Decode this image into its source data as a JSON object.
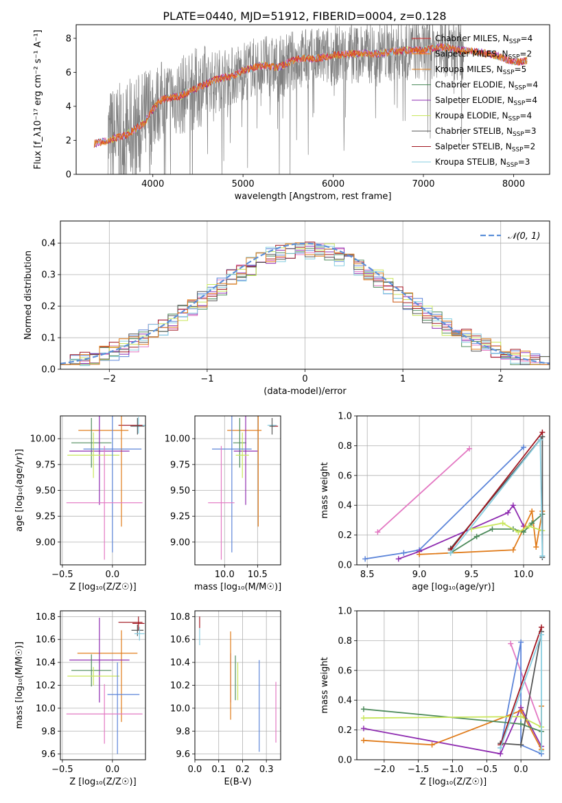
{
  "figure_title": "PLATE=0440, MJD=51912, FIBERID=0004, z=0.128",
  "colors": {
    "chabrier_miles": "#d62728",
    "salpeter_miles": "#ff7f0e",
    "kroupa_miles": "#e07b1a",
    "chabrier_elodie": "#4c8a5a",
    "salpeter_elodie": "#8e2bb0",
    "kroupa_elodie": "#c8e65a",
    "chabrier_stelib": "#555555",
    "salpeter_stelib": "#a0141e",
    "kroupa_stelib": "#86cde0",
    "gray": "#7f7f7f",
    "normal": "#5b8fd9",
    "pink": "#e377c2",
    "blue": "#5b84d9",
    "green": "#4c8a5a",
    "orange": "#e07b1a",
    "purple": "#8e2bb0",
    "lime": "#c8e65a",
    "darkred": "#a0141e",
    "teal": "#86cde0"
  },
  "chart_data": [
    {
      "type": "line",
      "id": "spectrum",
      "xlabel": "wavelength [Angstrom, rest frame]",
      "ylabel": "Flux [f_λ10⁻¹⁷ erg cm⁻² s⁻¹ A⁻¹]",
      "xlim": [
        3150,
        8400
      ],
      "ylim": [
        0,
        8.8
      ],
      "xticks": [
        4000,
        5000,
        6000,
        7000,
        8000
      ],
      "yticks": [
        0,
        2,
        4,
        6,
        8
      ],
      "legend_position": "right",
      "legend": [
        {
          "label": "Chabrier MILES, N",
          "sub": "SSP",
          "n": "=4"
        },
        {
          "label": "Salpeter MILES, N",
          "sub": "SSP",
          "n": "=2"
        },
        {
          "label": "Kroupa MILES, N",
          "sub": "SSP",
          "n": "=5"
        },
        {
          "label": "Chabrier ELODIE, N",
          "sub": "SSP",
          "n": "=4"
        },
        {
          "label": "Salpeter ELODIE, N",
          "sub": "SSP",
          "n": "=4"
        },
        {
          "label": "Kroupa ELODIE, N",
          "sub": "SSP",
          "n": "=4"
        },
        {
          "label": "Chabrier STELIB, N",
          "sub": "SSP",
          "n": "=3"
        },
        {
          "label": "Salpeter STELIB, N",
          "sub": "SSP",
          "n": "=2"
        },
        {
          "label": "Kroupa STELIB, N",
          "sub": "SSP",
          "n": "=3"
        }
      ],
      "model_curve": {
        "x": [
          3350,
          3500,
          3700,
          3900,
          4000,
          4100,
          4300,
          4500,
          4700,
          4900,
          5000,
          5200,
          5400,
          5600,
          5800,
          6000,
          6200,
          6500,
          6800,
          7000,
          7200,
          7400,
          7600,
          7800,
          8000,
          8150
        ],
        "y": [
          1.8,
          2.0,
          2.3,
          3.0,
          3.8,
          4.4,
          4.6,
          5.1,
          5.6,
          5.8,
          6.1,
          6.4,
          6.3,
          6.8,
          6.8,
          7.0,
          7.1,
          7.1,
          7.3,
          7.3,
          7.5,
          7.3,
          7.2,
          7.0,
          6.6,
          6.7
        ]
      }
    },
    {
      "type": "line",
      "id": "residuals",
      "xlabel": "(data-model)/error",
      "ylabel": "Normed distribution",
      "xlim": [
        -2.5,
        2.5
      ],
      "ylim": [
        0,
        0.47
      ],
      "xticks": [
        -2,
        -1,
        0,
        1,
        2
      ],
      "yticks": [
        0.0,
        0.1,
        0.2,
        0.3,
        0.4
      ],
      "legend": "𝒩(0, 1)",
      "normal": {
        "mu": 0,
        "sigma": 1
      }
    },
    {
      "type": "scatter",
      "id": "age_Z",
      "xlabel": "Z [log₁₀(Z/Z☉)]",
      "ylabel": "age  [log₁₀(age/yr)]",
      "xlim": [
        -0.52,
        0.33
      ],
      "ylim": [
        8.78,
        10.22
      ],
      "xticks": [
        -0.5,
        0.0
      ],
      "yticks": [
        9.0,
        9.25,
        9.5,
        9.75,
        10.0
      ],
      "points": [
        {
          "x": 0.26,
          "y": 10.13,
          "xerr": 0.07,
          "yerr": 0.08,
          "c": "teal"
        },
        {
          "x": 0.18,
          "y": 10.13,
          "xerr": 0.12,
          "yerr": 0.0,
          "c": "darkred"
        },
        {
          "x": 0.25,
          "y": 10.12,
          "xerr": 0.07,
          "yerr": 0.08,
          "c": "chabrier_stelib"
        },
        {
          "x": -0.09,
          "y": 10.08,
          "xerr": 0.25,
          "yerr": 0.0,
          "c": "orange"
        },
        {
          "x": 0.09,
          "y": 9.85,
          "xerr": 0.0,
          "yerr": 0.7,
          "c": "orange"
        },
        {
          "x": -0.21,
          "y": 9.96,
          "xerr": 0.2,
          "yerr": 0.24,
          "c": "green"
        },
        {
          "x": -0.13,
          "y": 9.88,
          "xerr": 0.3,
          "yerr": 0.52,
          "c": "purple"
        },
        {
          "x": -0.19,
          "y": 9.84,
          "xerr": 0.26,
          "yerr": 0.22,
          "c": "lime"
        },
        {
          "x": -0.0,
          "y": 9.9,
          "xerr": 0.29,
          "yerr": 1.0,
          "c": "blue"
        },
        {
          "x": -0.08,
          "y": 9.38,
          "xerr": 0.38,
          "yerr": 0.55,
          "c": "pink"
        }
      ]
    },
    {
      "type": "scatter",
      "id": "age_mass",
      "xlabel": "mass [log₁₀(M/M☉)]",
      "ylabel": "",
      "xlim": [
        9.55,
        10.85
      ],
      "ylim": [
        8.78,
        10.22
      ],
      "xticks": [
        10.0,
        10.5
      ],
      "yticks": [
        9.0,
        9.25,
        9.5,
        9.75,
        10.0
      ],
      "points": [
        {
          "x": 10.72,
          "y": 10.13,
          "xerr": 0.07,
          "yerr": 0.0,
          "c": "teal"
        },
        {
          "x": 10.76,
          "y": 10.12,
          "xerr": 0.05,
          "yerr": 0.0,
          "c": "darkred"
        },
        {
          "x": 10.72,
          "y": 10.12,
          "xerr": 0.04,
          "yerr": 0.08,
          "c": "chabrier_stelib"
        },
        {
          "x": 10.3,
          "y": 10.08,
          "xerr": 0.26,
          "yerr": 0.0,
          "c": "orange"
        },
        {
          "x": 10.51,
          "y": 9.85,
          "xerr": 0.0,
          "yerr": 0.7,
          "c": "orange"
        },
        {
          "x": 10.23,
          "y": 9.96,
          "xerr": 0.1,
          "yerr": 0.24,
          "c": "green"
        },
        {
          "x": 10.32,
          "y": 9.88,
          "xerr": 0.18,
          "yerr": 0.52,
          "c": "purple"
        },
        {
          "x": 10.27,
          "y": 9.84,
          "xerr": 0.1,
          "yerr": 0.22,
          "c": "lime"
        },
        {
          "x": 10.11,
          "y": 9.9,
          "xerr": 0.3,
          "yerr": 1.0,
          "c": "blue"
        },
        {
          "x": 9.95,
          "y": 9.38,
          "xerr": 0.2,
          "yerr": 0.55,
          "c": "pink"
        }
      ]
    },
    {
      "type": "line",
      "id": "mw_age",
      "xlabel": "age  [log₁₀(age/yr)]",
      "ylabel": "mass weight",
      "xlim": [
        8.4,
        10.25
      ],
      "ylim": [
        0,
        1.0
      ],
      "xticks": [
        8.5,
        9.0,
        9.5,
        10.0
      ],
      "yticks": [
        0.0,
        0.2,
        0.4,
        0.6,
        0.8,
        1.0
      ],
      "series": [
        {
          "c": "pink",
          "x": [
            8.6,
            9.48
          ],
          "y": [
            0.22,
            0.78
          ]
        },
        {
          "c": "blue",
          "x": [
            8.48,
            8.85,
            9.0,
            10.0
          ],
          "y": [
            0.04,
            0.08,
            0.1,
            0.79
          ]
        },
        {
          "c": "purple",
          "x": [
            8.8,
            9.0,
            9.85,
            9.9,
            10.0
          ],
          "y": [
            0.04,
            0.09,
            0.35,
            0.4,
            0.26
          ]
        },
        {
          "c": "orange",
          "x": [
            9.0,
            9.9,
            10.08,
            10.12,
            10.18
          ],
          "y": [
            0.07,
            0.1,
            0.36,
            0.12,
            0.36
          ]
        },
        {
          "c": "green",
          "x": [
            9.3,
            9.55,
            9.7,
            9.9,
            10.0,
            10.08,
            10.18
          ],
          "y": [
            0.08,
            0.19,
            0.24,
            0.24,
            0.22,
            0.28,
            0.34
          ]
        },
        {
          "c": "lime",
          "x": [
            9.5,
            9.8,
            9.95,
            10.05,
            10.18
          ],
          "y": [
            0.24,
            0.28,
            0.22,
            0.26,
            0.23
          ]
        },
        {
          "c": "chabrier_stelib",
          "x": [
            9.3,
            10.18,
            10.18
          ],
          "y": [
            0.11,
            0.86,
            0.05
          ]
        },
        {
          "c": "darkred",
          "x": [
            9.3,
            10.18
          ],
          "y": [
            0.1,
            0.89
          ]
        },
        {
          "c": "teal",
          "x": [
            9.3,
            10.16,
            10.18
          ],
          "y": [
            0.08,
            0.84,
            0.06
          ]
        }
      ]
    },
    {
      "type": "scatter",
      "id": "mass_Z",
      "xlabel": "Z [log₁₀(Z/Z☉)]",
      "ylabel": "mass [log₁₀(M/M☉)]",
      "xlim": [
        -0.52,
        0.33
      ],
      "ylim": [
        9.55,
        10.85
      ],
      "xticks": [
        -0.5,
        0.0
      ],
      "yticks": [
        9.6,
        9.8,
        10.0,
        10.2,
        10.4,
        10.6,
        10.8
      ],
      "points": [
        {
          "x": 0.18,
          "y": 10.75,
          "xerr": 0.12,
          "yerr": 0.0,
          "c": "darkred"
        },
        {
          "x": 0.26,
          "y": 10.74,
          "xerr": 0.06,
          "yerr": 0.06,
          "c": "darkred"
        },
        {
          "x": 0.25,
          "y": 10.68,
          "xerr": 0.06,
          "yerr": 0.05,
          "c": "chabrier_stelib"
        },
        {
          "x": 0.27,
          "y": 10.65,
          "xerr": 0.05,
          "yerr": 0.06,
          "c": "teal"
        },
        {
          "x": -0.05,
          "y": 10.48,
          "xerr": 0.3,
          "yerr": 0.0,
          "c": "orange"
        },
        {
          "x": 0.09,
          "y": 10.28,
          "xerr": 0.0,
          "yerr": 0.4,
          "c": "orange"
        },
        {
          "x": -0.13,
          "y": 10.42,
          "xerr": 0.3,
          "yerr": 0.37,
          "c": "purple"
        },
        {
          "x": -0.21,
          "y": 10.33,
          "xerr": 0.2,
          "yerr": 0.14,
          "c": "green"
        },
        {
          "x": -0.19,
          "y": 10.28,
          "xerr": 0.26,
          "yerr": 0.08,
          "c": "lime"
        },
        {
          "x": 0.11,
          "y": 10.12,
          "xerr": 0.16,
          "yerr": 0.0,
          "c": "blue"
        },
        {
          "x": 0.05,
          "y": 10.0,
          "xerr": 0.0,
          "yerr": 0.4,
          "c": "blue"
        },
        {
          "x": -0.08,
          "y": 9.95,
          "xerr": 0.38,
          "yerr": 0.26,
          "c": "pink"
        }
      ]
    },
    {
      "type": "scatter",
      "id": "mass_ebv",
      "xlabel": "E(B-V)",
      "ylabel": "",
      "xlim": [
        0.0,
        0.36
      ],
      "ylim": [
        9.55,
        10.85
      ],
      "xticks": [
        0.0,
        0.1,
        0.2,
        0.3
      ],
      "yticks": [
        9.6,
        9.8,
        10.0,
        10.2,
        10.4,
        10.6,
        10.8
      ],
      "vbars": [
        {
          "x": 0.02,
          "y0": 10.7,
          "y1": 10.8,
          "c": "darkred"
        },
        {
          "x": 0.02,
          "y0": 10.55,
          "y1": 10.7,
          "c": "teal"
        },
        {
          "x": 0.15,
          "y0": 10.05,
          "y1": 10.48,
          "c": "purple"
        },
        {
          "x": 0.15,
          "y0": 9.9,
          "y1": 10.67,
          "c": "orange"
        },
        {
          "x": 0.17,
          "y0": 10.07,
          "y1": 10.46,
          "c": "green"
        },
        {
          "x": 0.18,
          "y0": 10.07,
          "y1": 10.4,
          "c": "lime"
        },
        {
          "x": 0.27,
          "y0": 9.62,
          "y1": 10.42,
          "c": "blue"
        },
        {
          "x": 0.34,
          "y0": 9.7,
          "y1": 10.23,
          "c": "pink"
        }
      ]
    },
    {
      "type": "line",
      "id": "mw_Z",
      "xlabel": "Z [log₁₀(Z/Z☉)]",
      "ylabel": "mass weight",
      "xlim": [
        -2.4,
        0.42
      ],
      "ylim": [
        0,
        1.0
      ],
      "xticks": [
        -2.0,
        -1.5,
        -1.0,
        -0.5,
        0.0
      ],
      "yticks": [
        0.0,
        0.2,
        0.4,
        0.6,
        0.8,
        1.0
      ],
      "series": [
        {
          "c": "pink",
          "x": [
            -0.15,
            0.3
          ],
          "y": [
            0.78,
            0.22
          ]
        },
        {
          "c": "blue",
          "x": [
            -0.3,
            0.0,
            0.0,
            0.3
          ],
          "y": [
            0.08,
            0.79,
            0.1,
            0.04
          ]
        },
        {
          "c": "purple",
          "x": [
            -2.3,
            -0.3,
            0.0,
            0.3
          ],
          "y": [
            0.21,
            0.04,
            0.35,
            0.09
          ]
        },
        {
          "c": "orange",
          "x": [
            -2.3,
            -1.3,
            0.0,
            0.3,
            0.3
          ],
          "y": [
            0.13,
            0.1,
            0.33,
            0.07,
            0.36
          ]
        },
        {
          "c": "green",
          "x": [
            -2.3,
            0.0,
            0.3
          ],
          "y": [
            0.34,
            0.24,
            0.19
          ]
        },
        {
          "c": "lime",
          "x": [
            -2.3,
            0.0,
            0.3
          ],
          "y": [
            0.28,
            0.29,
            0.22
          ]
        },
        {
          "c": "chabrier_stelib",
          "x": [
            -0.3,
            0.0,
            0.3
          ],
          "y": [
            0.11,
            0.1,
            0.86
          ]
        },
        {
          "c": "darkred",
          "x": [
            -0.3,
            0.3
          ],
          "y": [
            0.1,
            0.89
          ]
        },
        {
          "c": "teal",
          "x": [
            -0.3,
            0.3,
            0.3
          ],
          "y": [
            0.08,
            0.84,
            0.06
          ]
        }
      ]
    }
  ]
}
